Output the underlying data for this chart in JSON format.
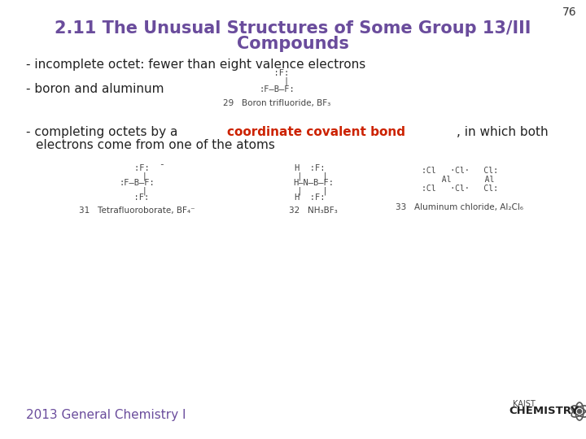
{
  "background_color": "#ffffff",
  "page_number": "76",
  "title_line1": "2.11 The Unusual Structures of Some Group 13/III",
  "title_line2": "Compounds",
  "title_color": "#6a4c9c",
  "title_fontsize": 15,
  "bullet1": "- incomplete octet: fewer than eight valence electrons",
  "bullet2": "- boron and aluminum",
  "bullet3_prefix": "- completing octets by a ",
  "bullet3_bold": "coordinate covalent bond",
  "bullet3_suffix": ", in which both",
  "bullet3_line2": "  electrons come from one of the atoms",
  "bullet_color": "#222222",
  "highlight_color": "#cc2200",
  "bullet_fontsize": 11,
  "footer_text": "2013 General Chemistry I",
  "footer_color": "#6a4c9c",
  "footer_fontsize": 11,
  "bf3_label": "29   Boron trifluoride, BF₃",
  "bf4_label": "31   Tetrafluoroborate, BF₄⁻",
  "nh3bf3_label": "32   NH₃BF₃",
  "al2cl6_label": "33   Aluminum chloride, Al₂Cl₆",
  "diagram_color": "#444444",
  "label_fontsize": 7.5,
  "diagram_fontsize": 7.5
}
